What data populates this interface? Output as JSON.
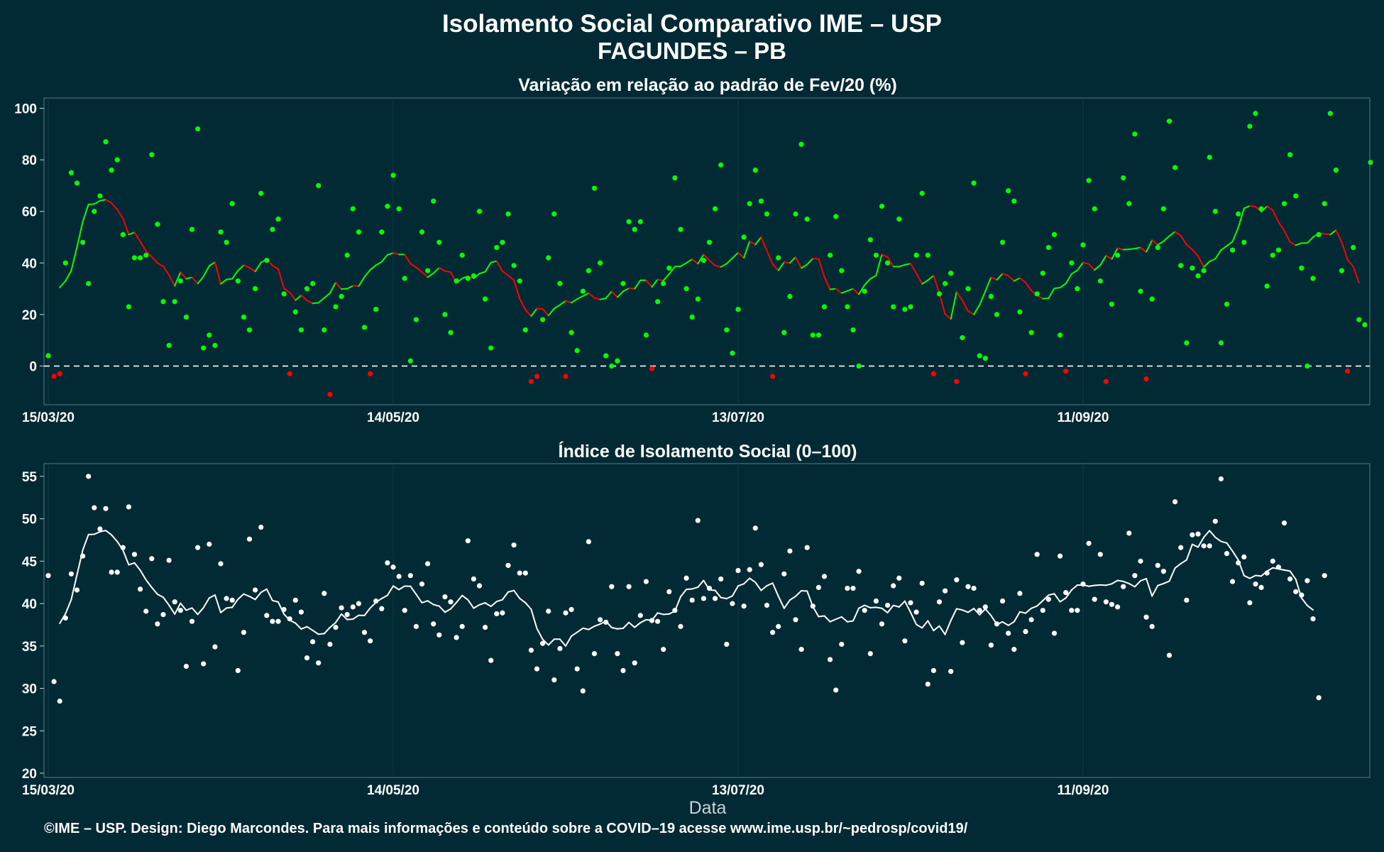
{
  "page": {
    "title": "Isolamento Social Comparativo IME – USP",
    "subtitle": "FAGUNDES – PB",
    "xlabel": "Data",
    "footer": "©IME – USP. Design: Diego Marcondes. Para mais informações e conteúdo sobre a COVID–19 acesse www.ime.usp.br/~pedrosp/covid19/",
    "colors": {
      "background": "#012a35",
      "positive": "#00ff00",
      "negative": "#ff0000",
      "index_series": "#ffffff"
    }
  },
  "chart_data": [
    {
      "type": "scatter",
      "title": "Variação em relação ao padrão de Fev/20 (%)",
      "xlabel": "",
      "ylabel": "",
      "x_tick_labels": [
        "15/03/20",
        "14/05/20",
        "13/07/20",
        "11/09/20"
      ],
      "x_tick_days": [
        0,
        60,
        120,
        180
      ],
      "yticks": [
        0,
        20,
        40,
        60,
        80,
        100
      ],
      "ylim": [
        -15,
        104
      ],
      "reference_line_y": 0,
      "grid": true,
      "series": [
        {
          "role": "daily points (green ≥ 0, red < 0)",
          "x_start_label": "15/03/20",
          "values": [
            4,
            -4,
            -3,
            40,
            75,
            71,
            48,
            32,
            60,
            66,
            87,
            76,
            80,
            51,
            23,
            42,
            42,
            43,
            82,
            55,
            25,
            8,
            25,
            33,
            19,
            53,
            92,
            7,
            12,
            8,
            52,
            48,
            63,
            33,
            19,
            14,
            30,
            67,
            41,
            53,
            57,
            28,
            -3,
            21,
            14,
            30,
            32,
            70,
            14,
            -11,
            23,
            27,
            43,
            61,
            52,
            15,
            -3,
            22,
            52,
            62,
            74,
            61,
            34,
            2,
            18,
            52,
            37,
            64,
            48,
            20,
            13,
            33,
            43,
            34,
            35,
            60,
            26,
            7,
            46,
            48,
            59,
            39,
            33,
            14,
            -6,
            -4,
            18,
            42,
            59,
            32,
            -4,
            13,
            6,
            29,
            37,
            69,
            40,
            4,
            0,
            2,
            32,
            56,
            53,
            56,
            12,
            -1,
            25,
            32,
            38,
            73,
            53,
            30,
            19,
            26,
            41,
            48,
            61,
            78,
            14,
            5,
            22,
            50,
            63,
            76,
            64,
            59,
            -4,
            42,
            13,
            27,
            59,
            86,
            57,
            12,
            12,
            23,
            43,
            58,
            37,
            23,
            14,
            0,
            29,
            49,
            43,
            62,
            40,
            23,
            57,
            22,
            23,
            43,
            67,
            43,
            -3,
            28,
            32,
            36,
            -6,
            11,
            30,
            71,
            4,
            3,
            27,
            20,
            48,
            68,
            64,
            21,
            -3,
            13,
            28,
            36,
            46,
            51,
            12,
            -2,
            40,
            30,
            47,
            72,
            61,
            33,
            -6,
            24,
            43,
            73,
            63,
            90,
            29,
            -5,
            26,
            46,
            61,
            95,
            77,
            39,
            9,
            38,
            35,
            37,
            81,
            60,
            9,
            24,
            45,
            59,
            48,
            93,
            98,
            61,
            31,
            43,
            45,
            63,
            82,
            66,
            38,
            0,
            34,
            51,
            63,
            98,
            76,
            37,
            -2,
            46,
            18,
            16,
            79
          ],
          "color_rule": "green when ≥ 0, red when < 0"
        },
        {
          "role": "7-day moving average line (green when rising, red when falling)",
          "values_source": "computed 7-day centered moving average of daily points"
        }
      ]
    },
    {
      "type": "scatter",
      "title": "Índice de Isolamento Social (0–100)",
      "xlabel": "Data",
      "ylabel": "",
      "x_tick_labels": [
        "15/03/20",
        "14/05/20",
        "13/07/20",
        "11/09/20"
      ],
      "x_tick_days": [
        0,
        60,
        120,
        180
      ],
      "yticks": [
        20,
        25,
        30,
        35,
        40,
        45,
        50,
        55
      ],
      "ylim": [
        19.5,
        56.5
      ],
      "grid": true,
      "series": [
        {
          "role": "daily points",
          "x_start_label": "15/03/20",
          "values": [
            43.3,
            30.8,
            28.5,
            38.3,
            43.5,
            41.6,
            45.6,
            55.0,
            51.3,
            48.8,
            51.2,
            43.7,
            43.7,
            46.6,
            51.4,
            45.8,
            41.7,
            39.1,
            45.3,
            37.6,
            38.7,
            45.1,
            40.2,
            39.2,
            32.6,
            37.9,
            46.6,
            32.9,
            47.0,
            34.9,
            44.7,
            40.6,
            40.4,
            32.1,
            36.6,
            47.6,
            41.6,
            49.0,
            38.6,
            37.9,
            37.9,
            39.3,
            38.2,
            40.4,
            39.0,
            33.6,
            35.5,
            33.0,
            41.2,
            35.2,
            37.2,
            39.5,
            38.7,
            39.6,
            40.0,
            36.6,
            35.6,
            40.3,
            39.4,
            44.8,
            44.3,
            43.2,
            39.2,
            43.3,
            37.3,
            42.3,
            44.7,
            37.6,
            36.3,
            40.8,
            40.2,
            36.0,
            37.3,
            47.4,
            42.9,
            42.1,
            37.2,
            33.3,
            38.8,
            38.9,
            44.5,
            46.9,
            43.6,
            43.6,
            34.5,
            32.3,
            35.3,
            39.1,
            31.0,
            34.7,
            38.9,
            39.3,
            32.3,
            29.7,
            47.3,
            34.1,
            38.1,
            37.8,
            42.0,
            34.1,
            32.1,
            42.0,
            33.0,
            38.6,
            42.6,
            38.0,
            37.9,
            34.6,
            41.4,
            39.2,
            37.3,
            43.0,
            40.4,
            49.8,
            40.6,
            41.8,
            40.6,
            42.9,
            35.2,
            40.0,
            43.9,
            39.7,
            44.0,
            48.9,
            44.6,
            39.8,
            36.6,
            37.3,
            43.5,
            46.2,
            38.1,
            34.6,
            46.6,
            39.7,
            41.9,
            43.2,
            33.4,
            29.8,
            35.2,
            41.8,
            41.8,
            43.8,
            39.2,
            34.1,
            40.3,
            37.6,
            39.8,
            42.1,
            43.0,
            35.6,
            40.1,
            39.0,
            42.4,
            30.5,
            32.1,
            40.2,
            41.5,
            32.0,
            42.8,
            35.4,
            42.0,
            41.8,
            39.2,
            39.6,
            35.1,
            37.6,
            40.3,
            36.5,
            34.6,
            41.2,
            36.7,
            38.1,
            45.8,
            39.2,
            40.5,
            36.5,
            45.6,
            41.3,
            39.2,
            39.2,
            42.3,
            47.1,
            40.5,
            45.8,
            40.2,
            39.9,
            39.6,
            42.0,
            48.3,
            43.3,
            45.0,
            38.4,
            37.3,
            44.5,
            43.8,
            33.9,
            52.0,
            46.6,
            40.4,
            48.1,
            48.2,
            46.8,
            46.8,
            49.7,
            54.7,
            45.9,
            42.6,
            44.8,
            45.5,
            40.1,
            42.3,
            41.9,
            43.6,
            45.0,
            44.3,
            49.5,
            42.9,
            41.4,
            41.0,
            42.7,
            38.2,
            28.9,
            43.3
          ]
        },
        {
          "role": "7-day moving average line",
          "values_source": "computed 7-day centered moving average of daily points",
          "color": "#ffffff"
        }
      ]
    }
  ]
}
